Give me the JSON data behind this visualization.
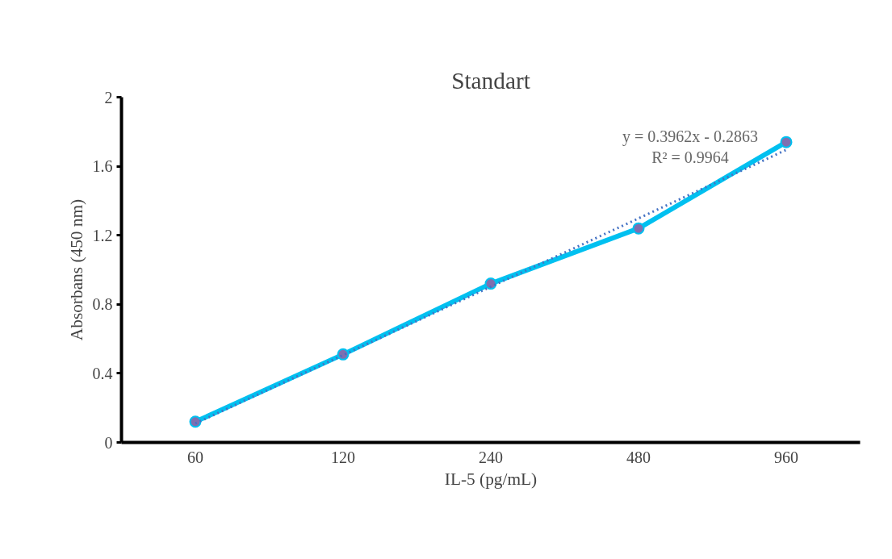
{
  "chart_data": {
    "type": "line",
    "title": "Standart",
    "xlabel": "IL-5 (pg/mL)",
    "ylabel": "Absorbans (450 nm)",
    "categories": [
      "60",
      "120",
      "240",
      "480",
      "960"
    ],
    "series": [
      {
        "color": "#00c0f0",
        "values": [
          0.12,
          0.51,
          0.92,
          1.24,
          1.74
        ],
        "marker": "circle",
        "line_style": "solid"
      },
      {
        "type": "line",
        "color": "#4472c4",
        "x": [
          "60",
          "120",
          "240",
          "480",
          "960"
        ],
        "values": [
          0.11,
          0.506,
          0.902,
          1.298,
          1.695
        ],
        "marker": "none",
        "line_style": "dotted"
      }
    ],
    "ylim": [
      0,
      2
    ],
    "yticks": [
      0,
      0.4,
      0.8,
      1.2,
      1.6,
      2
    ],
    "grid": false,
    "annotations": [
      "y = 0.3962x - 0.2863",
      "R² = 0.9964"
    ]
  }
}
